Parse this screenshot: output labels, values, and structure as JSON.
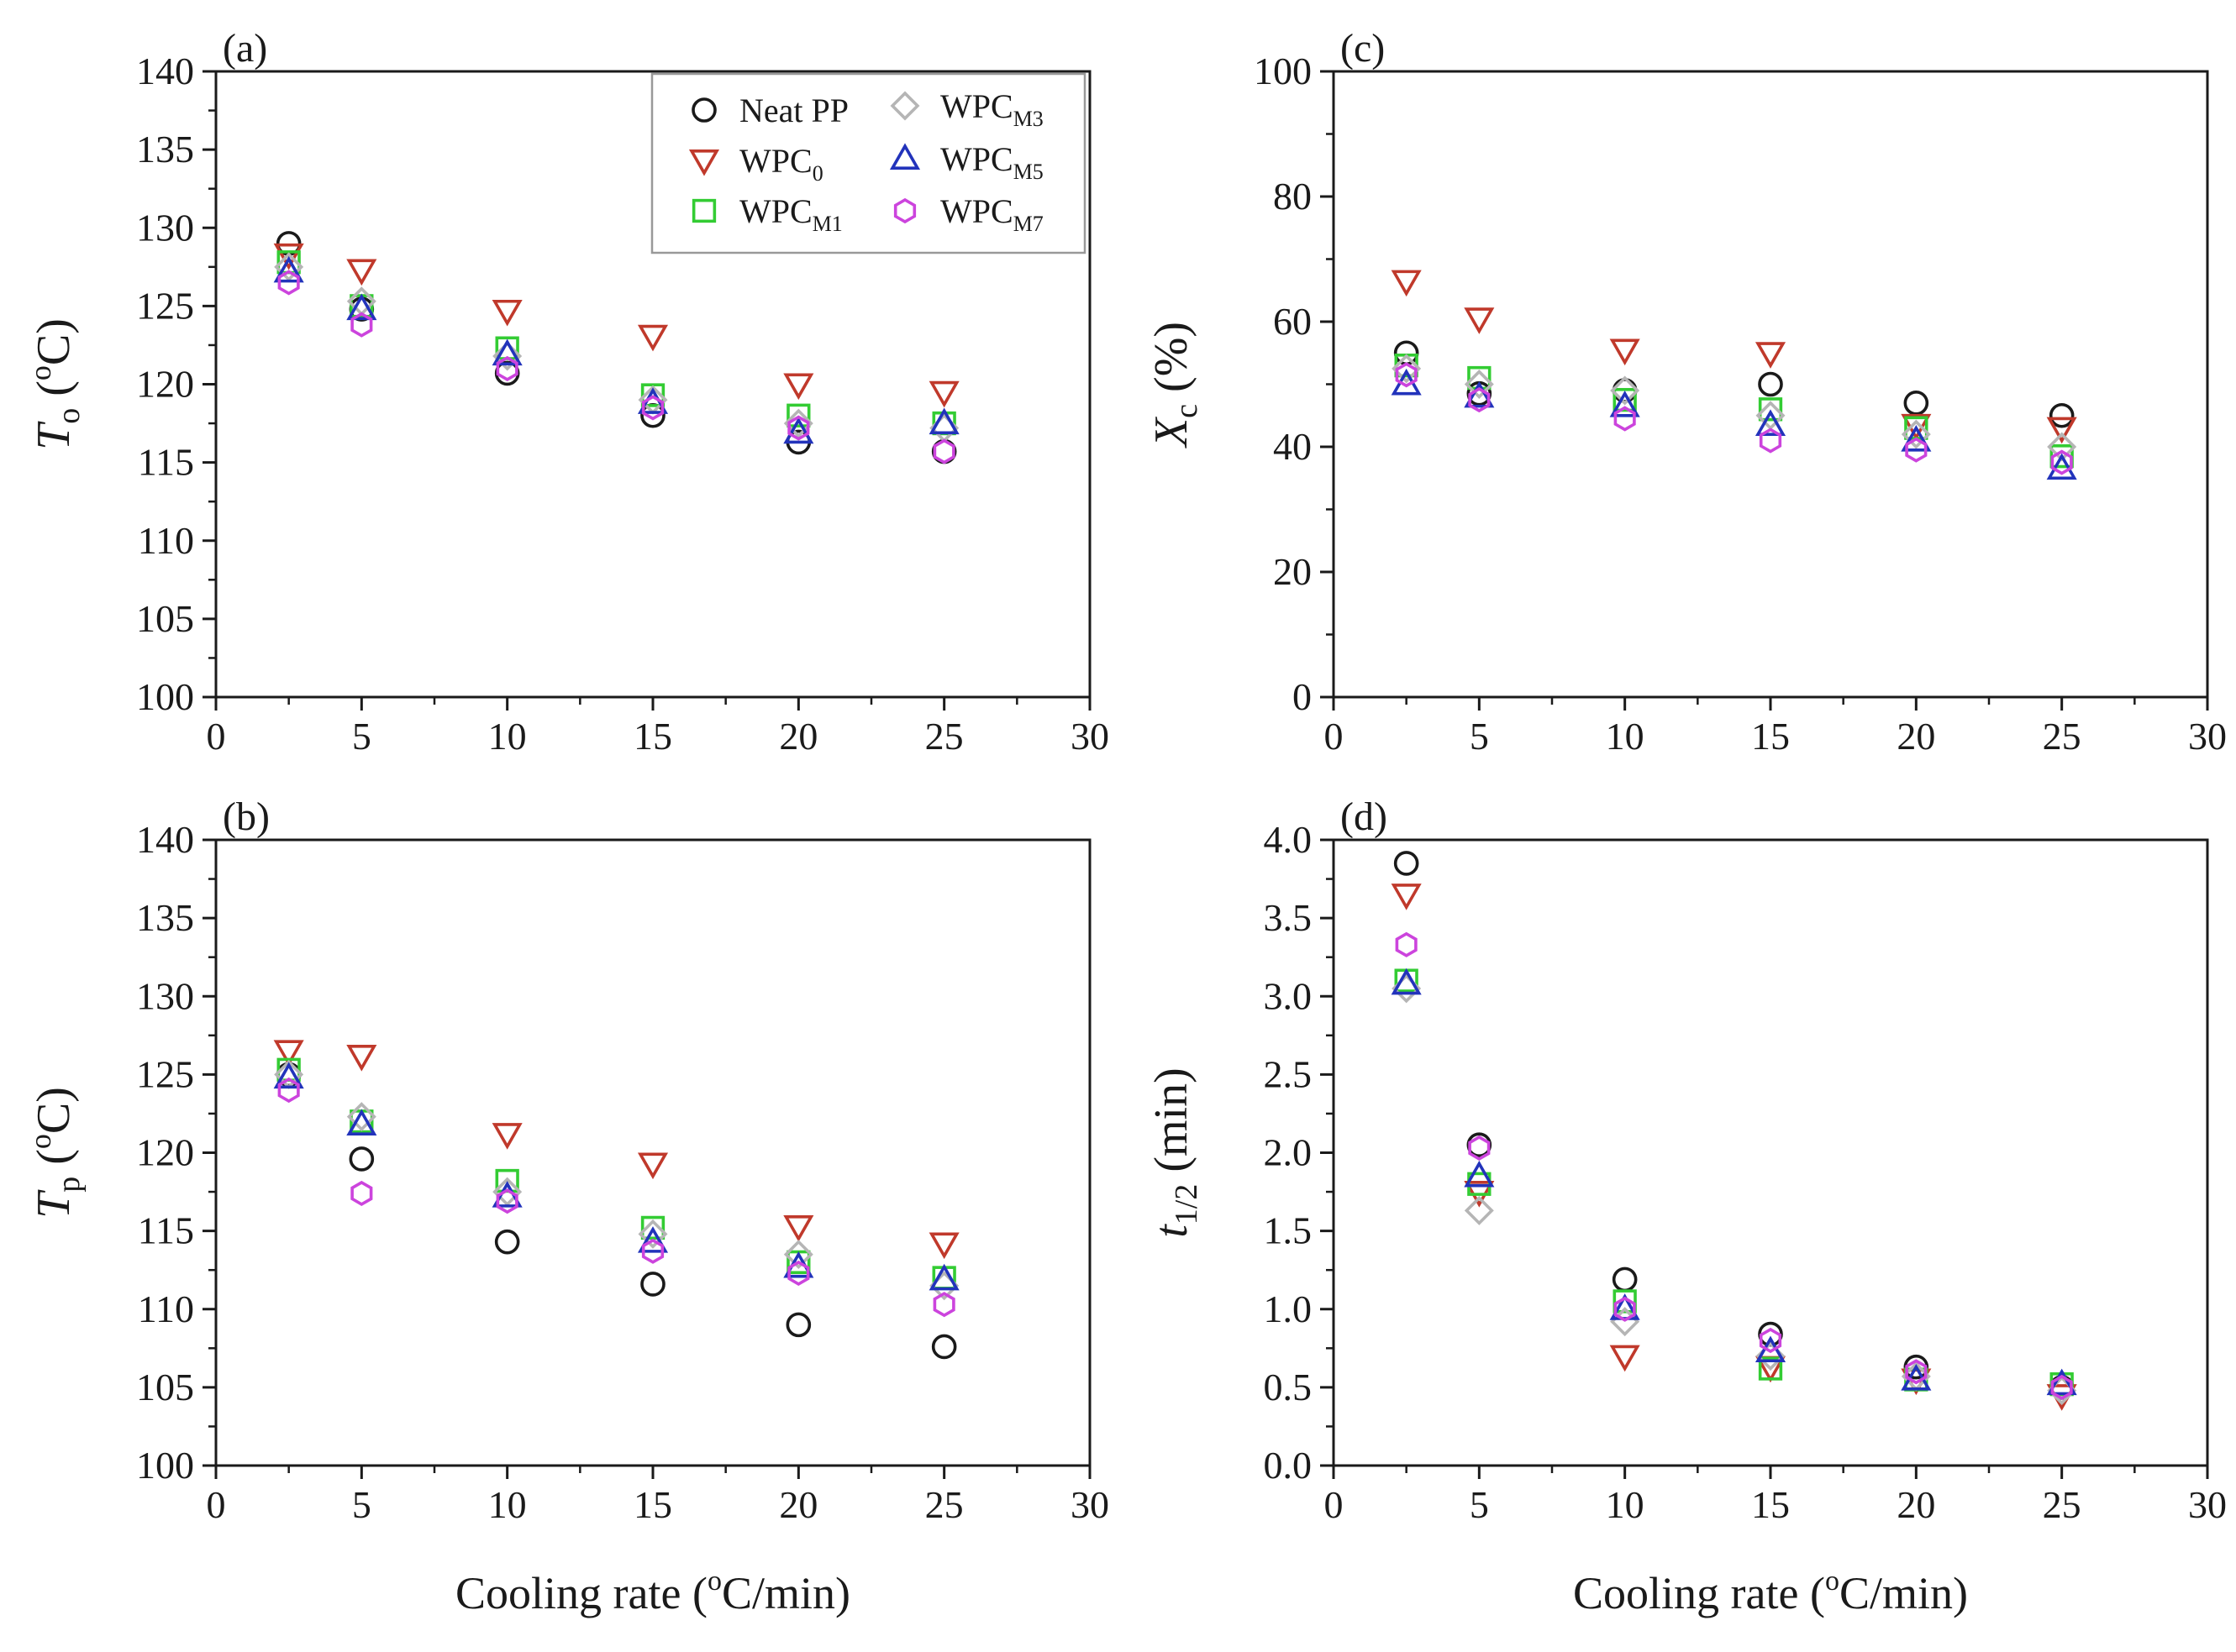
{
  "colors": {
    "neat": "#1a1a1a",
    "wpc0": "#c0392b",
    "m1": "#33cc33",
    "m3": "#b5b5b5",
    "m5": "#2233bb",
    "m7": "#cc44dd"
  },
  "legend": {
    "items": [
      {
        "key": "neat",
        "main": "Neat PP",
        "sub": ""
      },
      {
        "key": "wpc0",
        "main": "WPC",
        "sub": "0"
      },
      {
        "key": "m1",
        "main": "WPC",
        "sub": "M1"
      },
      {
        "key": "m3",
        "main": "WPC",
        "sub": "M3"
      },
      {
        "key": "m5",
        "main": "WPC",
        "sub": "M5"
      },
      {
        "key": "m7",
        "main": "WPC",
        "sub": "M7"
      }
    ]
  },
  "chart_data": [
    {
      "id": "a",
      "type": "scatter",
      "panel_label": "(a)",
      "ylabel": {
        "main": "T",
        "sub": "o",
        "unit_open": " (",
        "deg": "o",
        "unit_close": "C)"
      },
      "xlabel": "",
      "xlim": [
        0,
        30
      ],
      "ylim": [
        100,
        140
      ],
      "xticks": [
        0,
        5,
        10,
        15,
        20,
        25,
        30
      ],
      "yticks": [
        100,
        105,
        110,
        115,
        120,
        125,
        130,
        135,
        140
      ],
      "x": [
        2.5,
        5,
        10,
        15,
        20,
        25
      ],
      "series": [
        {
          "key": "neat",
          "name": "Neat PP",
          "marker": "circle",
          "values": [
            129.0,
            124.8,
            120.7,
            118.0,
            116.3,
            115.7
          ]
        },
        {
          "key": "wpc0",
          "name": "WPC0",
          "marker": "triangle-down",
          "values": [
            128.3,
            127.3,
            124.7,
            123.1,
            120.0,
            119.5
          ]
        },
        {
          "key": "m1",
          "name": "WPCM1",
          "marker": "square",
          "values": [
            127.8,
            125.0,
            122.3,
            119.3,
            118.0,
            117.5
          ]
        },
        {
          "key": "m3",
          "name": "WPCM3",
          "marker": "diamond",
          "values": [
            127.5,
            125.3,
            121.8,
            119.0,
            117.5,
            117.2
          ]
        },
        {
          "key": "m5",
          "name": "WPCM5",
          "marker": "triangle-up",
          "values": [
            127.2,
            124.8,
            121.9,
            118.8,
            116.9,
            117.5
          ]
        },
        {
          "key": "m7",
          "name": "WPCM7",
          "marker": "hexagon",
          "values": [
            126.5,
            123.8,
            121.0,
            118.5,
            117.2,
            115.7
          ]
        }
      ]
    },
    {
      "id": "b",
      "type": "scatter",
      "panel_label": "(b)",
      "ylabel": {
        "main": "T",
        "sub": "p",
        "unit_open": " (",
        "deg": "o",
        "unit_close": "C)"
      },
      "xlabel": {
        "main": "Cooling rate (",
        "deg": "o",
        "rest": "C/min)"
      },
      "xlim": [
        0,
        30
      ],
      "ylim": [
        100,
        140
      ],
      "xticks": [
        0,
        5,
        10,
        15,
        20,
        25,
        30
      ],
      "yticks": [
        100,
        105,
        110,
        115,
        120,
        125,
        130,
        135,
        140
      ],
      "x": [
        2.5,
        5,
        10,
        15,
        20,
        25
      ],
      "series": [
        {
          "key": "neat",
          "name": "Neat PP",
          "marker": "circle",
          "values": [
            125.0,
            119.6,
            114.3,
            111.6,
            109.0,
            107.6
          ]
        },
        {
          "key": "wpc0",
          "name": "WPC0",
          "marker": "triangle-down",
          "values": [
            126.5,
            126.2,
            121.2,
            119.3,
            115.3,
            114.2
          ]
        },
        {
          "key": "m1",
          "name": "WPCM1",
          "marker": "square",
          "values": [
            125.3,
            122.0,
            118.2,
            115.2,
            113.0,
            112.0
          ]
        },
        {
          "key": "m3",
          "name": "WPCM3",
          "marker": "diamond",
          "values": [
            125.0,
            122.3,
            117.5,
            114.8,
            113.5,
            111.5
          ]
        },
        {
          "key": "m5",
          "name": "WPCM5",
          "marker": "triangle-up",
          "values": [
            124.8,
            121.8,
            117.2,
            114.3,
            112.7,
            111.9
          ]
        },
        {
          "key": "m7",
          "name": "WPCM7",
          "marker": "hexagon",
          "values": [
            124.0,
            117.4,
            116.9,
            113.7,
            112.3,
            110.3
          ]
        }
      ]
    },
    {
      "id": "c",
      "type": "scatter",
      "panel_label": "(c)",
      "ylabel": {
        "main": "X",
        "sub": "c",
        "unit_open": " (%)",
        "deg": "",
        "unit_close": ""
      },
      "xlabel": "",
      "xlim": [
        0,
        30
      ],
      "ylim": [
        0,
        100
      ],
      "xticks": [
        0,
        5,
        10,
        15,
        20,
        25,
        30
      ],
      "yticks": [
        0,
        20,
        40,
        60,
        80,
        100
      ],
      "x": [
        2.5,
        5,
        10,
        15,
        20,
        25
      ],
      "series": [
        {
          "key": "neat",
          "name": "Neat PP",
          "marker": "circle",
          "values": [
            55.0,
            48.5,
            49.0,
            50.0,
            47.0,
            45.0
          ]
        },
        {
          "key": "wpc0",
          "name": "WPC0",
          "marker": "triangle-down",
          "values": [
            66.5,
            60.5,
            55.5,
            55.0,
            43.5,
            43.0
          ]
        },
        {
          "key": "m1",
          "name": "WPCM1",
          "marker": "square",
          "values": [
            53.0,
            51.0,
            47.5,
            46.0,
            43.0,
            38.5
          ]
        },
        {
          "key": "m3",
          "name": "WPCM3",
          "marker": "diamond",
          "values": [
            52.5,
            50.0,
            49.0,
            45.0,
            42.0,
            40.0
          ]
        },
        {
          "key": "m5",
          "name": "WPCM5",
          "marker": "triangle-up",
          "values": [
            50.0,
            48.0,
            46.5,
            43.5,
            41.0,
            36.5
          ]
        },
        {
          "key": "m7",
          "name": "WPCM7",
          "marker": "hexagon",
          "values": [
            51.5,
            47.5,
            44.5,
            41.0,
            39.5,
            37.5
          ]
        }
      ]
    },
    {
      "id": "d",
      "type": "scatter",
      "panel_label": "(d)",
      "ylabel": {
        "main": "t",
        "sub": "1/2",
        "unit_open": " (min)",
        "deg": "",
        "unit_close": ""
      },
      "xlabel": {
        "main": "Cooling rate (",
        "deg": "o",
        "rest": "C/min)"
      },
      "xlim": [
        0,
        30
      ],
      "ylim": [
        0,
        4
      ],
      "xticks": [
        0,
        5,
        10,
        15,
        20,
        25,
        30
      ],
      "yticks": [
        0,
        0.5,
        1,
        1.5,
        2,
        2.5,
        3,
        3.5,
        4
      ],
      "ytick_labels": [
        "0.0",
        "0.5",
        "1.0",
        "1.5",
        "2.0",
        "2.5",
        "3.0",
        "3.5",
        "4.0"
      ],
      "x": [
        2.5,
        5,
        10,
        15,
        20,
        25
      ],
      "series": [
        {
          "key": "neat",
          "name": "Neat PP",
          "marker": "circle",
          "values": [
            3.85,
            2.05,
            1.19,
            0.84,
            0.63,
            0.5
          ]
        },
        {
          "key": "wpc0",
          "name": "WPC0",
          "marker": "triangle-down",
          "values": [
            3.65,
            1.75,
            0.7,
            0.63,
            0.55,
            0.45
          ]
        },
        {
          "key": "m1",
          "name": "WPCM1",
          "marker": "square",
          "values": [
            3.1,
            1.8,
            1.05,
            0.62,
            0.55,
            0.52
          ]
        },
        {
          "key": "m3",
          "name": "WPCM3",
          "marker": "diamond",
          "values": [
            3.05,
            1.63,
            0.92,
            0.7,
            0.57,
            0.48
          ]
        },
        {
          "key": "m5",
          "name": "WPCM5",
          "marker": "triangle-up",
          "values": [
            3.08,
            1.85,
            1.0,
            0.73,
            0.55,
            0.52
          ]
        },
        {
          "key": "m7",
          "name": "WPCM7",
          "marker": "hexagon",
          "values": [
            3.33,
            2.03,
            1.0,
            0.8,
            0.6,
            0.5
          ]
        }
      ]
    }
  ]
}
